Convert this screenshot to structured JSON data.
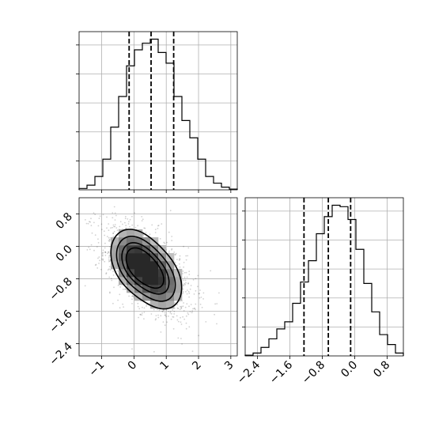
{
  "chart_data": [
    {
      "type": "histogram",
      "panel": "top-left",
      "variable": "x",
      "title": "",
      "xlabel": "",
      "ylabel": "",
      "xlim": [
        -1.7,
        3.2
      ],
      "bin_edges": [
        -1.7,
        -1.455,
        -1.21,
        -0.965,
        -0.72,
        -0.475,
        -0.23,
        0.015,
        0.26,
        0.505,
        0.75,
        0.995,
        1.24,
        1.485,
        1.73,
        1.975,
        2.22,
        2.465,
        2.71,
        2.955,
        3.2
      ],
      "counts": [
        0.1,
        0.35,
        1.0,
        2.3,
        4.7,
        7.0,
        9.3,
        10.5,
        11.0,
        11.3,
        10.3,
        9.5,
        7.0,
        5.2,
        3.9,
        2.3,
        1.0,
        0.5,
        0.2,
        0.05
      ],
      "quantile_lines": [
        -0.15,
        0.53,
        1.23
      ],
      "x_ticks": [
        -1,
        0,
        1,
        2,
        3
      ],
      "grid": true
    },
    {
      "type": "heatmap",
      "subtype": "2d-density-with-contours",
      "panel": "bottom-left",
      "xlabel": "",
      "ylabel": "",
      "xlim": [
        -1.7,
        3.2
      ],
      "ylim": [
        -2.7,
        1.2
      ],
      "x_ticks": [
        -1,
        0,
        1,
        2,
        3
      ],
      "x_tick_labels": [
        "−1",
        "0",
        "1",
        "2",
        "3"
      ],
      "y_ticks": [
        -2.4,
        -1.6,
        -0.8,
        0.0,
        0.8
      ],
      "y_tick_labels": [
        "−2.4",
        "−1.6",
        "−0.8",
        "0.0",
        "0.8"
      ],
      "density_peaks": [
        {
          "x": 0.05,
          "y": -0.35,
          "weight": 1.0
        },
        {
          "x": 0.8,
          "y": -0.85,
          "weight": 0.75
        }
      ],
      "grid": true
    },
    {
      "type": "histogram",
      "panel": "bottom-right",
      "variable": "y",
      "title": "",
      "xlabel": "",
      "ylabel": "",
      "xlim": [
        -2.7,
        1.2
      ],
      "bin_edges": [
        -2.7,
        -2.505,
        -2.31,
        -2.115,
        -1.92,
        -1.725,
        -1.53,
        -1.335,
        -1.14,
        -0.945,
        -0.75,
        -0.555,
        -0.36,
        -0.165,
        0.03,
        0.225,
        0.42,
        0.615,
        0.81,
        1.005,
        1.2
      ],
      "counts": [
        0.05,
        0.2,
        0.6,
        1.2,
        1.9,
        2.4,
        3.7,
        5.2,
        6.7,
        8.6,
        9.8,
        10.6,
        10.5,
        9.6,
        7.5,
        5.1,
        3.1,
        1.5,
        0.8,
        0.2
      ],
      "quantile_lines": [
        -1.25,
        -0.65,
        -0.1
      ],
      "x_ticks": [
        -2.4,
        -1.6,
        -0.8,
        0.0,
        0.8
      ],
      "x_tick_labels": [
        "−2.4",
        "−1.6",
        "−0.8",
        "0.0",
        "0.8"
      ],
      "grid": true
    }
  ]
}
